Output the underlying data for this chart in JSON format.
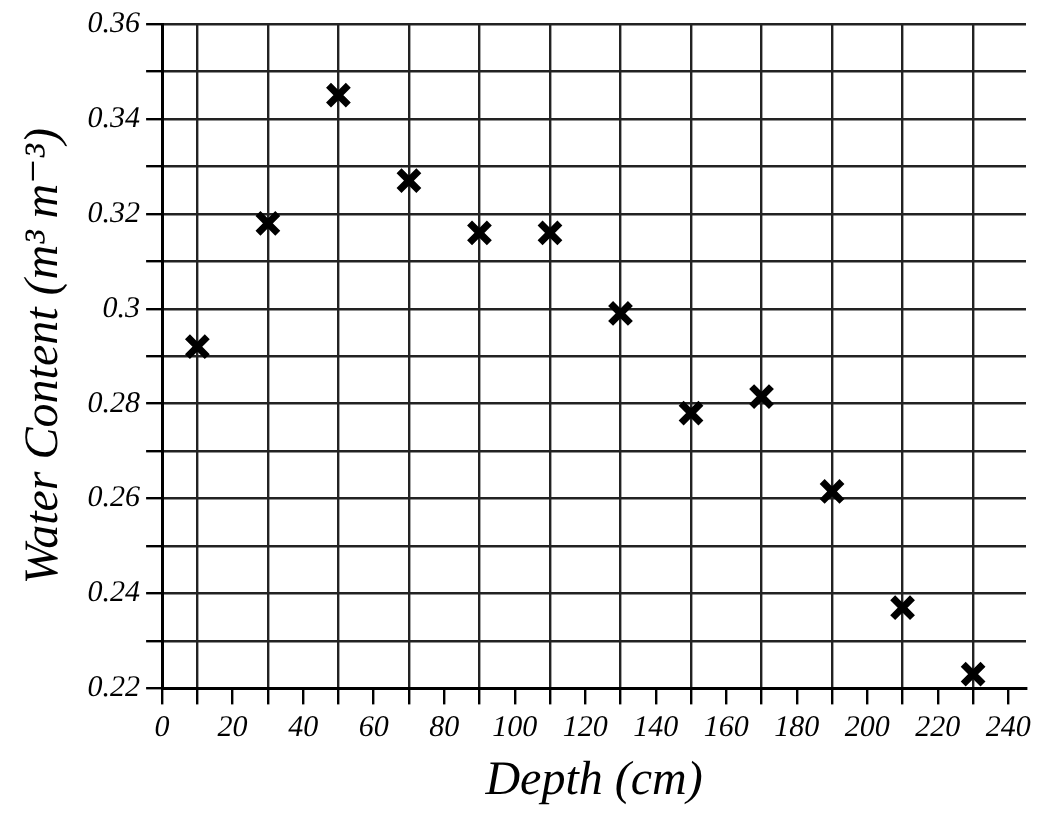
{
  "chart_data": {
    "type": "scatter",
    "xlabel": "Depth (cm)",
    "ylabel": "Water Content (m³ m⁻³)",
    "x": [
      10,
      30,
      50,
      70,
      90,
      110,
      130,
      150,
      170,
      190,
      210,
      230
    ],
    "series": [
      {
        "color": "#000000",
        "values": [
          0.292,
          0.318,
          0.345,
          0.327,
          0.316,
          0.316,
          0.299,
          0.278,
          0.2815,
          0.2615,
          0.237,
          0.223
        ]
      }
    ],
    "xlim": [
      0,
      245
    ],
    "xticks": [
      0,
      {
        "value": 10,
        "label": null
      },
      20,
      {
        "value": 30,
        "label": null
      },
      40,
      {
        "value": 50,
        "label": null
      },
      60,
      {
        "value": 70,
        "label": null
      },
      80,
      {
        "value": 90,
        "label": null
      },
      100,
      {
        "value": 110,
        "label": null
      },
      120,
      {
        "value": 130,
        "label": null
      },
      140,
      {
        "value": 150,
        "label": null
      },
      160,
      {
        "value": 170,
        "label": null
      },
      180,
      {
        "value": 190,
        "label": null
      },
      200,
      {
        "value": 210,
        "label": null
      },
      220,
      {
        "value": 230,
        "label": null
      },
      240
    ],
    "ylim": [
      0.22,
      0.36
    ],
    "yticks": [
      0.22,
      {
        "value": 0.23,
        "label": null
      },
      0.24,
      {
        "value": 0.25,
        "label": null
      },
      0.26,
      {
        "value": 0.27,
        "label": null
      },
      0.28,
      {
        "value": 0.29,
        "label": null
      },
      0.3,
      {
        "value": 0.31,
        "label": null
      },
      0.32,
      {
        "value": 0.33,
        "label": null
      },
      0.34,
      {
        "value": 0.35,
        "label": null
      },
      0.36
    ],
    "grid": true,
    "marker": "cross",
    "legend": false
  }
}
